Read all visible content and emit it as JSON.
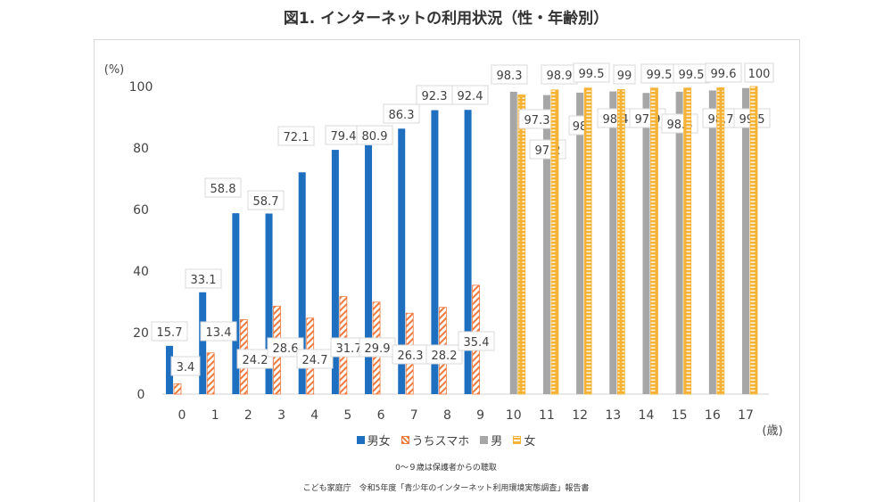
{
  "chart_data": {
    "type": "bar",
    "title": "図1. インターネットの利用状況（性・年齢別）",
    "ylabel": "(%)",
    "xlabel": "(歳)",
    "ylim": [
      0,
      100
    ],
    "yticks": [
      0,
      20,
      40,
      60,
      80,
      100
    ],
    "grid": false,
    "legend_position": "bottom",
    "categories": [
      "0",
      "1",
      "2",
      "3",
      "4",
      "5",
      "6",
      "7",
      "8",
      "9",
      "10",
      "11",
      "12",
      "13",
      "14",
      "15",
      "16",
      "17"
    ],
    "series": [
      {
        "name": "男女",
        "color": "#1f6fc0",
        "pattern": "solid",
        "values": [
          15.7,
          33.1,
          58.8,
          58.7,
          72.1,
          79.4,
          80.9,
          86.3,
          92.3,
          92.4,
          null,
          null,
          null,
          null,
          null,
          null,
          null,
          null
        ]
      },
      {
        "name": "うちスマホ",
        "color": "#f07a3e",
        "pattern": "diagonal-hatch",
        "values": [
          3.4,
          13.4,
          24.2,
          28.6,
          24.7,
          31.7,
          29.9,
          26.3,
          28.2,
          35.4,
          null,
          null,
          null,
          null,
          null,
          null,
          null,
          null
        ]
      },
      {
        "name": "男",
        "color": "#a6a6a6",
        "pattern": "solid",
        "values": [
          null,
          null,
          null,
          null,
          null,
          null,
          null,
          null,
          null,
          null,
          98.3,
          97.2,
          98,
          98.4,
          97.9,
          98.3,
          98.7,
          99.5
        ]
      },
      {
        "name": "女",
        "color": "#f5b335",
        "pattern": "horizontal-hatch",
        "values": [
          null,
          null,
          null,
          null,
          null,
          null,
          null,
          null,
          null,
          null,
          97.3,
          98.9,
          99.5,
          99,
          99.5,
          99.5,
          99.6,
          100
        ]
      }
    ],
    "notes": [
      "0～９歳は保護者からの聴取",
      "こども家庭庁　令和5年度「青少年のインターネット利用環境実態調査」報告書"
    ]
  }
}
